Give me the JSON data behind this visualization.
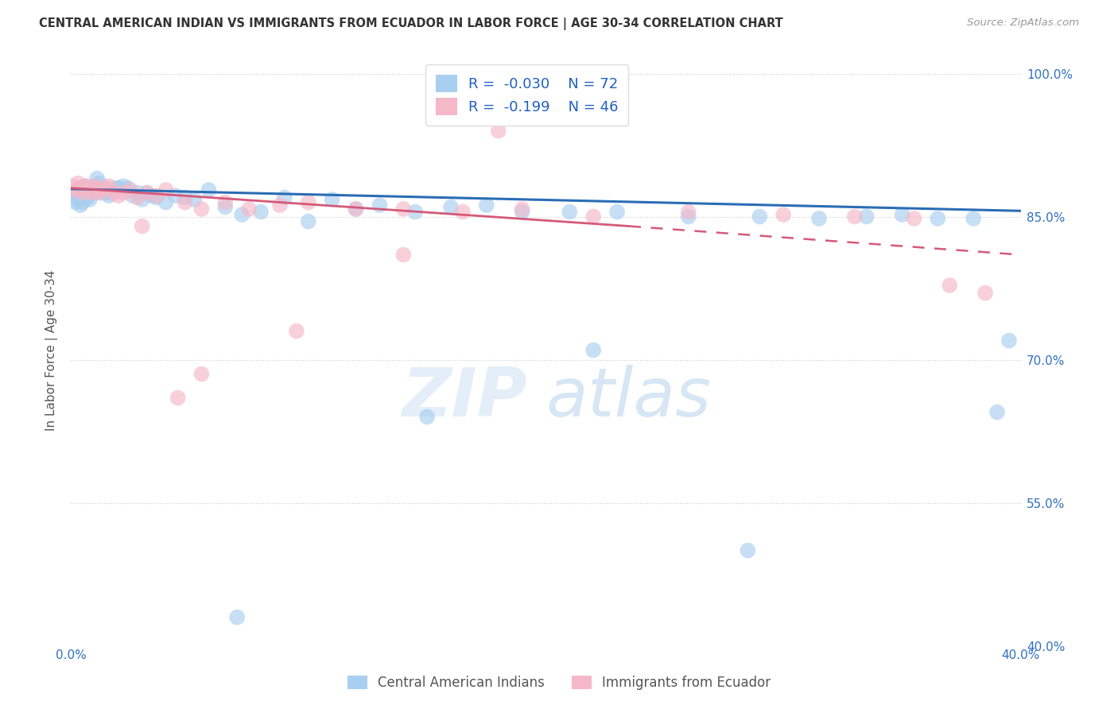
{
  "title": "CENTRAL AMERICAN INDIAN VS IMMIGRANTS FROM ECUADOR IN LABOR FORCE | AGE 30-34 CORRELATION CHART",
  "source": "Source: ZipAtlas.com",
  "ylabel": "In Labor Force | Age 30-34",
  "blue_R": -0.03,
  "blue_N": 72,
  "pink_R": -0.199,
  "pink_N": 46,
  "blue_color": "#a8cff0",
  "pink_color": "#f5b8c8",
  "blue_line_color": "#2a6db5",
  "pink_line_color": "#d45a7a",
  "legend_label_blue": "Central American Indians",
  "legend_label_pink": "Immigrants from Ecuador",
  "xmin": 0.0,
  "xmax": 0.4,
  "ymin": 0.4,
  "ymax": 1.02,
  "yticks": [
    0.4,
    0.55,
    0.7,
    0.85,
    1.0
  ],
  "ytick_labels": [
    "40.0%",
    "55.0%",
    "70.0%",
    "85.0%",
    "100.0%"
  ],
  "xticks": [
    0.0,
    0.1,
    0.2,
    0.3,
    0.4
  ],
  "xtick_labels": [
    "0.0%",
    "",
    "",
    "",
    "40.0%"
  ],
  "blue_x": [
    0.001,
    0.002,
    0.002,
    0.003,
    0.003,
    0.004,
    0.004,
    0.004,
    0.005,
    0.005,
    0.005,
    0.006,
    0.006,
    0.007,
    0.007,
    0.008,
    0.008,
    0.009,
    0.009,
    0.01,
    0.01,
    0.011,
    0.012,
    0.012,
    0.013,
    0.014,
    0.015,
    0.016,
    0.017,
    0.018,
    0.019,
    0.02,
    0.022,
    0.024,
    0.026,
    0.028,
    0.03,
    0.032,
    0.034,
    0.036,
    0.04,
    0.044,
    0.048,
    0.052,
    0.058,
    0.065,
    0.072,
    0.08,
    0.09,
    0.1,
    0.11,
    0.12,
    0.13,
    0.145,
    0.16,
    0.175,
    0.19,
    0.21,
    0.23,
    0.26,
    0.29,
    0.315,
    0.335,
    0.35,
    0.365,
    0.38,
    0.39,
    0.395,
    0.285,
    0.22,
    0.15,
    0.07
  ],
  "blue_y": [
    0.87,
    0.875,
    0.865,
    0.872,
    0.868,
    0.88,
    0.862,
    0.875,
    0.88,
    0.878,
    0.865,
    0.878,
    0.882,
    0.875,
    0.87,
    0.878,
    0.868,
    0.875,
    0.88,
    0.882,
    0.878,
    0.89,
    0.885,
    0.878,
    0.875,
    0.88,
    0.875,
    0.872,
    0.875,
    0.878,
    0.88,
    0.88,
    0.882,
    0.88,
    0.872,
    0.875,
    0.868,
    0.875,
    0.872,
    0.87,
    0.865,
    0.872,
    0.87,
    0.868,
    0.878,
    0.86,
    0.852,
    0.855,
    0.87,
    0.845,
    0.868,
    0.858,
    0.862,
    0.855,
    0.86,
    0.862,
    0.855,
    0.855,
    0.855,
    0.85,
    0.85,
    0.848,
    0.85,
    0.852,
    0.848,
    0.848,
    0.645,
    0.72,
    0.5,
    0.71,
    0.64,
    0.43
  ],
  "pink_x": [
    0.001,
    0.002,
    0.003,
    0.004,
    0.005,
    0.006,
    0.007,
    0.008,
    0.009,
    0.01,
    0.011,
    0.012,
    0.013,
    0.015,
    0.016,
    0.018,
    0.02,
    0.022,
    0.025,
    0.028,
    0.032,
    0.036,
    0.04,
    0.048,
    0.055,
    0.065,
    0.075,
    0.088,
    0.1,
    0.12,
    0.14,
    0.165,
    0.19,
    0.22,
    0.26,
    0.3,
    0.33,
    0.355,
    0.37,
    0.385,
    0.14,
    0.18,
    0.055,
    0.095,
    0.03,
    0.045
  ],
  "pink_y": [
    0.882,
    0.878,
    0.885,
    0.88,
    0.875,
    0.882,
    0.878,
    0.88,
    0.875,
    0.882,
    0.88,
    0.875,
    0.878,
    0.88,
    0.882,
    0.875,
    0.872,
    0.875,
    0.878,
    0.87,
    0.875,
    0.872,
    0.878,
    0.865,
    0.858,
    0.865,
    0.858,
    0.862,
    0.865,
    0.858,
    0.858,
    0.855,
    0.858,
    0.85,
    0.855,
    0.852,
    0.85,
    0.848,
    0.778,
    0.77,
    0.81,
    0.94,
    0.685,
    0.73,
    0.84,
    0.66
  ],
  "watermark_zip": "ZIP",
  "watermark_atlas": "atlas",
  "background_color": "#ffffff",
  "grid_color": "#cccccc"
}
